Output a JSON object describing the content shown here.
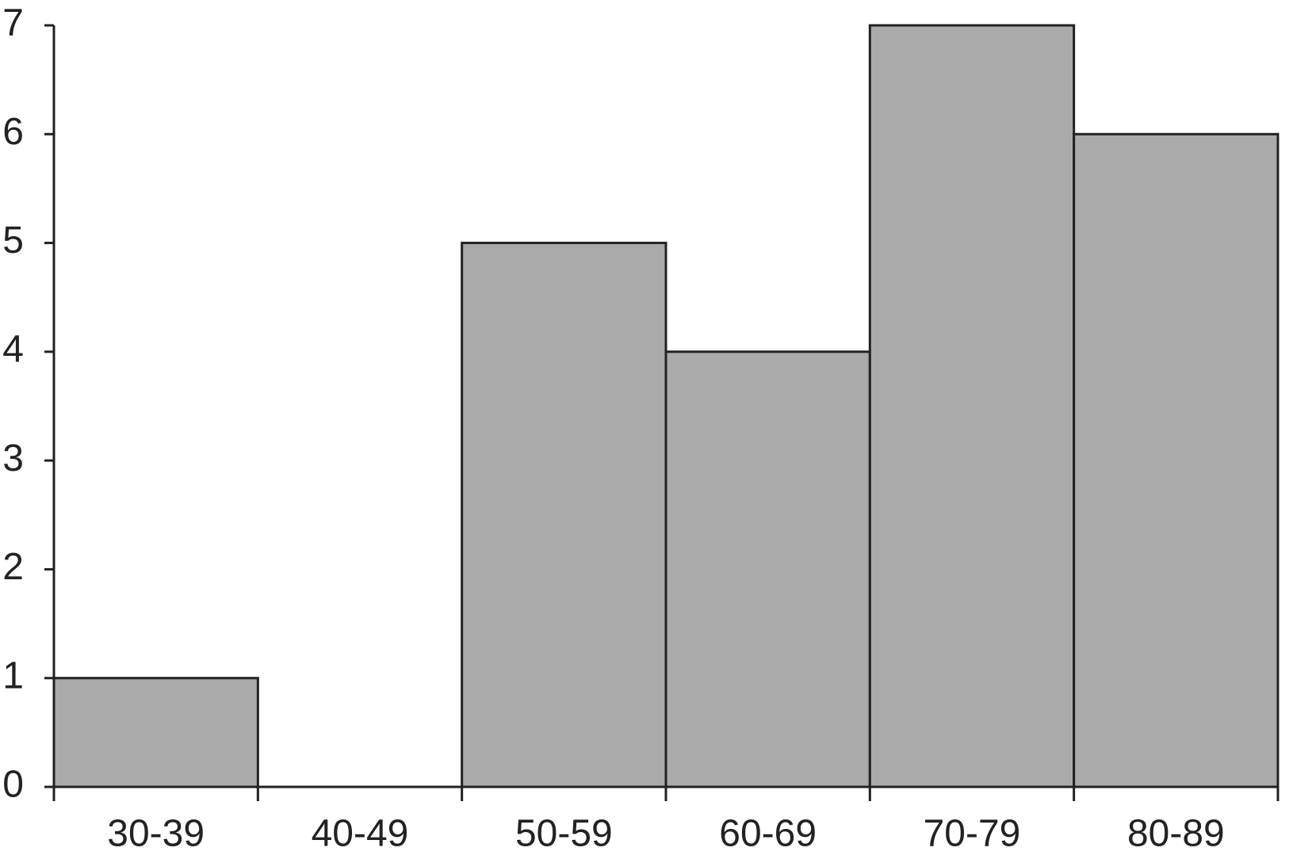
{
  "chart_data": {
    "type": "bar",
    "categories": [
      "30-39",
      "40-49",
      "50-59",
      "60-69",
      "70-79",
      "80-89"
    ],
    "values": [
      1,
      0,
      5,
      4,
      7,
      6
    ],
    "color": "#aaaaaa",
    "ylim": [
      0,
      7
    ],
    "yticks": [
      0,
      1,
      2,
      3,
      4,
      5,
      6,
      7
    ],
    "grid": false
  }
}
